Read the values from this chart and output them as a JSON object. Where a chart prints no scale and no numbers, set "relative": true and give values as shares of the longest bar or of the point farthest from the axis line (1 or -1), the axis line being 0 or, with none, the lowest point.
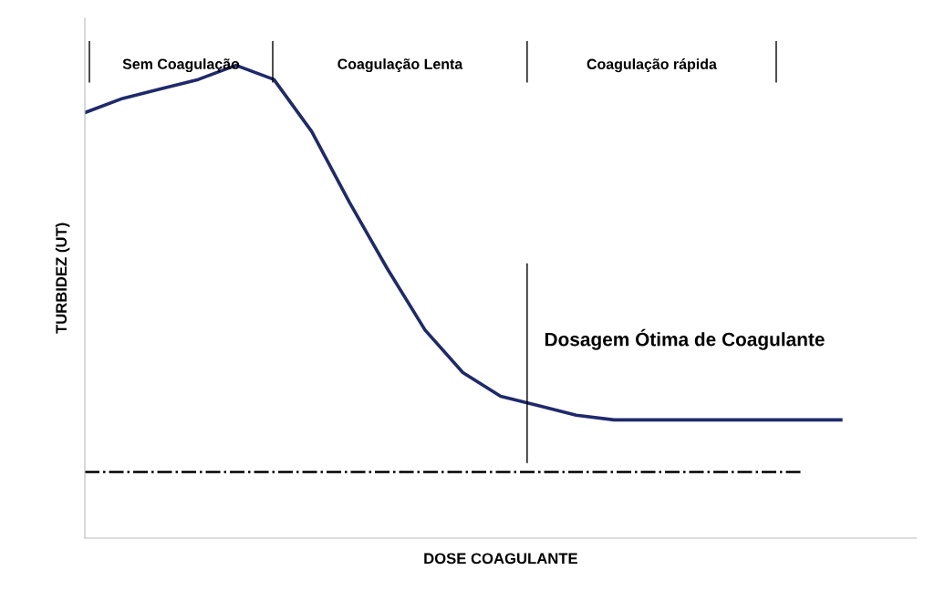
{
  "chart_data": {
    "type": "line",
    "relative": true,
    "xlabel": "DOSE COAGULANTE",
    "ylabel": "TURBIDEZ (UT)",
    "categories": [
      null,
      null,
      null,
      null,
      null,
      null,
      null,
      null,
      null,
      null,
      null,
      null,
      null,
      null,
      null,
      null,
      null,
      null,
      null,
      null,
      null
    ],
    "marker": "none",
    "series": [
      {
        "color": "#1f2a6b",
        "line_style": "solid",
        "values": [
          0.9,
          0.93,
          0.95,
          0.97,
          1.0,
          0.97,
          0.86,
          0.71,
          0.57,
          0.44,
          0.35,
          0.3,
          0.28,
          0.26,
          0.25,
          0.25,
          0.25,
          0.25,
          0.25,
          0.25,
          0.25
        ]
      },
      {
        "color": "#000000",
        "line_style": "dashdot",
        "values": [
          0.14,
          0.14,
          0.14,
          0.14,
          0.14,
          0.14,
          0.14,
          0.14,
          0.14,
          0.14,
          0.14,
          0.14,
          0.14,
          0.14,
          0.14,
          0.14,
          0.14,
          0.14,
          0.14,
          0.14,
          null
        ]
      }
    ],
    "annotations": [
      "Sem Coagulação",
      "Coagulação Lenta",
      "Coagulação rápida",
      "Dosagem Ótima de Coagulante"
    ]
  }
}
